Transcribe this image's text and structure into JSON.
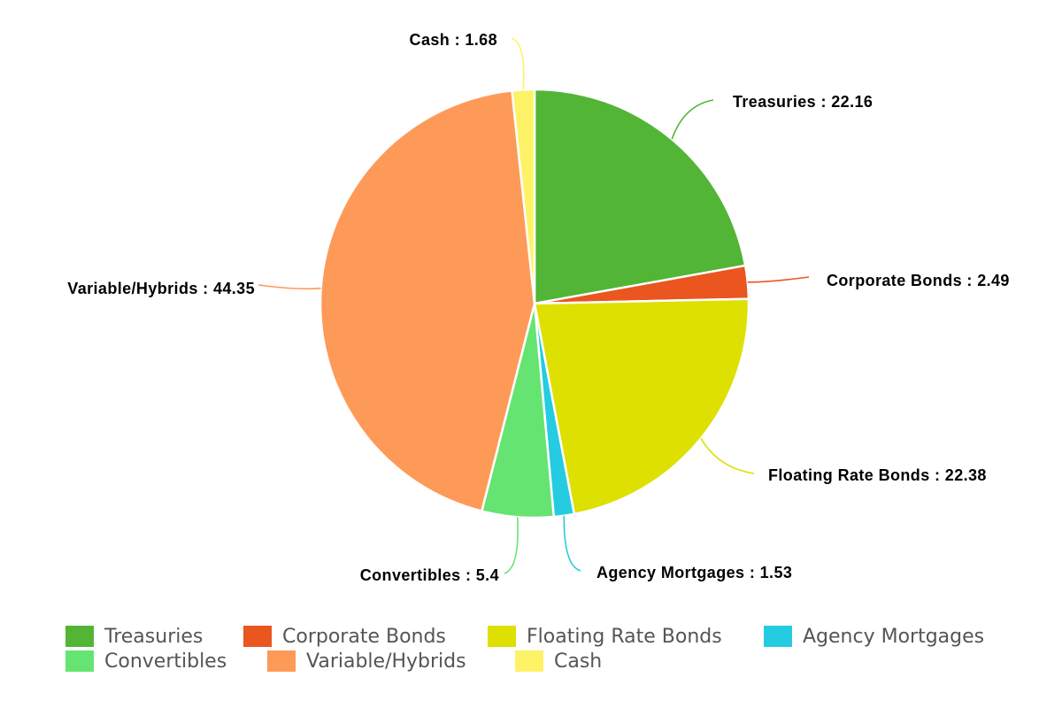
{
  "chart_data": {
    "type": "pie",
    "slices": [
      {
        "label": "Treasuries",
        "value": 22.16,
        "color": "#52b535",
        "data_label": "Treasuries : 22.16"
      },
      {
        "label": "Corporate Bonds",
        "value": 2.49,
        "color": "#ea5520",
        "data_label": "Corporate Bonds : 2.49"
      },
      {
        "label": "Floating Rate Bonds",
        "value": 22.38,
        "color": "#dde000",
        "data_label": "Floating Rate Bonds : 22.38"
      },
      {
        "label": "Agency Mortgages",
        "value": 1.53,
        "color": "#25cbe0",
        "data_label": "Agency Mortgages : 1.53"
      },
      {
        "label": "Convertibles",
        "value": 5.4,
        "color": "#66e472",
        "data_label": "Convertibles : 5.4"
      },
      {
        "label": "Variable/Hybrids",
        "value": 44.35,
        "color": "#fe9a58",
        "data_label": "Variable/Hybrids : 44.35"
      },
      {
        "label": "Cash",
        "value": 1.68,
        "color": "#fef266",
        "data_label": "Cash : 1.68"
      }
    ],
    "legend": {
      "position": "bottom",
      "rows": [
        [
          "Treasuries",
          "Corporate Bonds",
          "Floating Rate Bonds",
          "Agency Mortgages"
        ],
        [
          "Convertibles",
          "Variable/Hybrids",
          "Cash"
        ]
      ]
    }
  }
}
